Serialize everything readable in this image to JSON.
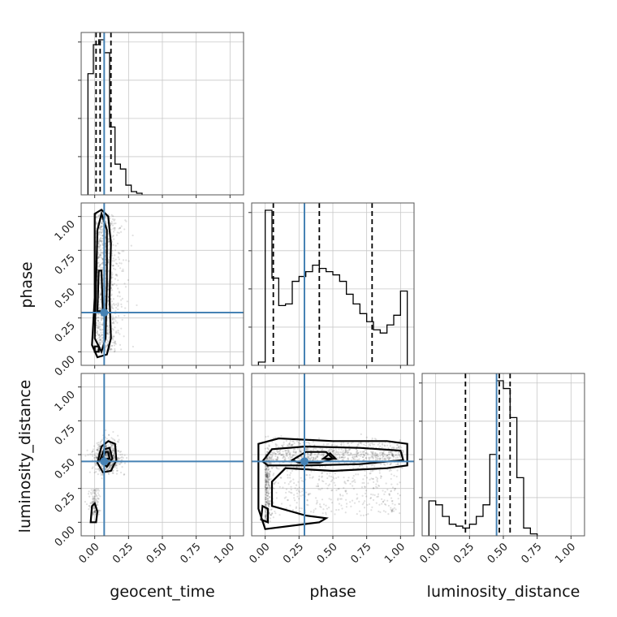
{
  "chart_data": {
    "type": "corner",
    "parameters": [
      "geocent_time",
      "phase",
      "luminosity_distance"
    ],
    "axis_range": [
      -0.1,
      1.1
    ],
    "ticks": [
      0.0,
      0.25,
      0.5,
      0.75,
      1.0
    ],
    "tick_labels": [
      "0.00",
      "0.25",
      "0.50",
      "0.75",
      "1.00"
    ],
    "truths": {
      "geocent_time": 0.07,
      "phase": 0.29,
      "luminosity_distance": 0.45
    },
    "quantiles": {
      "geocent_time": [
        0.01,
        0.04,
        0.12
      ],
      "phase": [
        0.06,
        0.4,
        0.79
      ],
      "luminosity_distance": [
        0.22,
        0.47,
        0.55
      ]
    },
    "histograms": {
      "geocent_time": {
        "edges": [
          -0.05,
          -0.01,
          0.03,
          0.07,
          0.11,
          0.15,
          0.19,
          0.23,
          0.27,
          0.31,
          0.35
        ],
        "counts": [
          0.75,
          0.93,
          0.96,
          0.88,
          0.42,
          0.19,
          0.16,
          0.06,
          0.02,
          0.01
        ]
      },
      "phase": {
        "edges": [
          -0.05,
          0.0,
          0.05,
          0.1,
          0.15,
          0.2,
          0.25,
          0.3,
          0.35,
          0.4,
          0.45,
          0.5,
          0.55,
          0.6,
          0.65,
          0.7,
          0.75,
          0.8,
          0.85,
          0.9,
          0.95,
          1.0,
          1.05
        ],
        "counts": [
          0.02,
          0.96,
          0.54,
          0.37,
          0.38,
          0.52,
          0.55,
          0.58,
          0.62,
          0.6,
          0.58,
          0.56,
          0.52,
          0.44,
          0.38,
          0.32,
          0.27,
          0.22,
          0.2,
          0.25,
          0.31,
          0.46
        ]
      },
      "luminosity_distance": {
        "edges": [
          -0.05,
          0.0,
          0.05,
          0.1,
          0.15,
          0.2,
          0.25,
          0.3,
          0.35,
          0.4,
          0.45,
          0.5,
          0.55,
          0.6,
          0.65,
          0.7,
          0.75
        ],
        "counts": [
          0.18,
          0.16,
          0.1,
          0.06,
          0.05,
          0.04,
          0.06,
          0.1,
          0.16,
          0.42,
          0.8,
          0.76,
          0.61,
          0.3,
          0.04,
          0.01
        ]
      }
    },
    "contours_2d": {
      "phase_vs_geocent_time": [
        [
          [
            -0.02,
            0.05
          ],
          [
            0.0,
            0.4
          ],
          [
            0.0,
            0.8
          ],
          [
            0.0,
            1.02
          ],
          [
            0.05,
            1.05
          ],
          [
            0.1,
            1.0
          ],
          [
            0.12,
            0.8
          ],
          [
            0.11,
            0.4
          ],
          [
            0.12,
            0.1
          ],
          [
            0.09,
            -0.02
          ],
          [
            0.02,
            -0.04
          ]
        ],
        [
          [
            0.0,
            0.1
          ],
          [
            0.01,
            0.5
          ],
          [
            0.02,
            0.9
          ],
          [
            0.05,
            1.02
          ],
          [
            0.09,
            0.9
          ],
          [
            0.09,
            0.5
          ],
          [
            0.08,
            0.1
          ],
          [
            0.05,
            0.0
          ]
        ],
        [
          [
            0.02,
            0.3
          ],
          [
            0.03,
            0.6
          ],
          [
            0.05,
            0.6
          ],
          [
            0.06,
            0.3
          ]
        ],
        [
          [
            0.0,
            0.0
          ],
          [
            0.0,
            0.04
          ],
          [
            0.03,
            0.04
          ],
          [
            0.03,
            0.0
          ]
        ]
      ],
      "luminosity_distance_vs_geocent_time": [
        [
          [
            0.02,
            0.44
          ],
          [
            0.05,
            0.56
          ],
          [
            0.1,
            0.6
          ],
          [
            0.15,
            0.58
          ],
          [
            0.16,
            0.46
          ],
          [
            0.12,
            0.38
          ],
          [
            0.06,
            0.37
          ]
        ],
        [
          [
            0.04,
            0.46
          ],
          [
            0.07,
            0.54
          ],
          [
            0.11,
            0.55
          ],
          [
            0.13,
            0.47
          ],
          [
            0.09,
            0.41
          ]
        ],
        [
          [
            0.06,
            0.47
          ],
          [
            0.08,
            0.52
          ],
          [
            0.1,
            0.52
          ],
          [
            0.11,
            0.47
          ]
        ],
        [
          [
            -0.03,
            0.0
          ],
          [
            -0.02,
            0.12
          ],
          [
            0.0,
            0.14
          ],
          [
            0.02,
            0.08
          ],
          [
            0.01,
            0.0
          ]
        ]
      ],
      "luminosity_distance_vs_phase": [
        [
          [
            -0.05,
            0.4
          ],
          [
            -0.05,
            0.58
          ],
          [
            0.1,
            0.62
          ],
          [
            0.5,
            0.6
          ],
          [
            0.9,
            0.6
          ],
          [
            1.05,
            0.58
          ],
          [
            1.05,
            0.42
          ],
          [
            0.9,
            0.4
          ],
          [
            0.5,
            0.38
          ],
          [
            0.15,
            0.4
          ],
          [
            0.05,
            0.3
          ],
          [
            0.05,
            0.12
          ],
          [
            0.3,
            0.05
          ],
          [
            0.45,
            0.03
          ],
          [
            0.4,
            0.0
          ],
          [
            0.0,
            -0.05
          ],
          [
            -0.05,
            0.1
          ]
        ],
        [
          [
            -0.02,
            0.45
          ],
          [
            0.05,
            0.54
          ],
          [
            0.3,
            0.56
          ],
          [
            0.7,
            0.55
          ],
          [
            1.0,
            0.53
          ],
          [
            1.02,
            0.46
          ],
          [
            0.7,
            0.43
          ],
          [
            0.3,
            0.42
          ],
          [
            0.02,
            0.42
          ]
        ],
        [
          [
            0.2,
            0.46
          ],
          [
            0.3,
            0.52
          ],
          [
            0.45,
            0.52
          ],
          [
            0.5,
            0.47
          ],
          [
            0.4,
            0.44
          ],
          [
            0.25,
            0.44
          ]
        ],
        [
          [
            0.43,
            0.47
          ],
          [
            0.48,
            0.51
          ],
          [
            0.52,
            0.47
          ]
        ],
        [
          [
            -0.03,
            0.02
          ],
          [
            -0.02,
            0.12
          ],
          [
            0.02,
            0.1
          ],
          [
            0.02,
            0.0
          ]
        ]
      ]
    }
  }
}
